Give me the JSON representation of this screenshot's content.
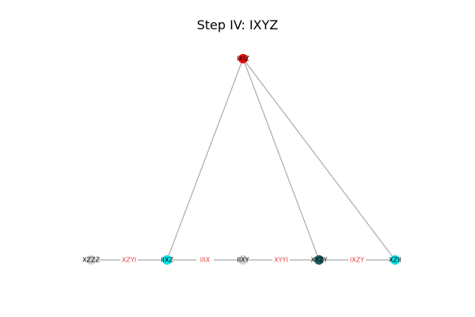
{
  "title": "Step IV: IXYZ",
  "graph": {
    "edge_color": "#aaaaaa",
    "edge_label_color": "#e04040",
    "nodes": [
      {
        "id": "IXIZ",
        "label": "IXIZ",
        "color": "#e81010"
      },
      {
        "id": "XZZZ",
        "label": "XZZZ",
        "color": "#d3d3d3"
      },
      {
        "id": "IIXZ",
        "label": "IIXZ",
        "color": "#00e5ee"
      },
      {
        "id": "IIXY",
        "label": "IIXY",
        "color": "#d3d3d3"
      },
      {
        "id": "XYZY",
        "label": "XYZY",
        "color": "#1f5f5f"
      },
      {
        "id": "XZII",
        "label": "XZII",
        "color": "#00e5ee"
      }
    ],
    "edges": [
      {
        "source": "XZZZ",
        "target": "IIXZ",
        "label": "XZYI"
      },
      {
        "source": "IIXZ",
        "target": "IIXY",
        "label": "IIIX"
      },
      {
        "source": "IIXY",
        "target": "XYZY",
        "label": "XYYI"
      },
      {
        "source": "XYZY",
        "target": "XZII",
        "label": "IXZY"
      },
      {
        "source": "IXIZ",
        "target": "IIXZ",
        "label": ""
      },
      {
        "source": "IXIZ",
        "target": "XYZY",
        "label": ""
      },
      {
        "source": "IXIZ",
        "target": "XZII",
        "label": ""
      }
    ]
  }
}
